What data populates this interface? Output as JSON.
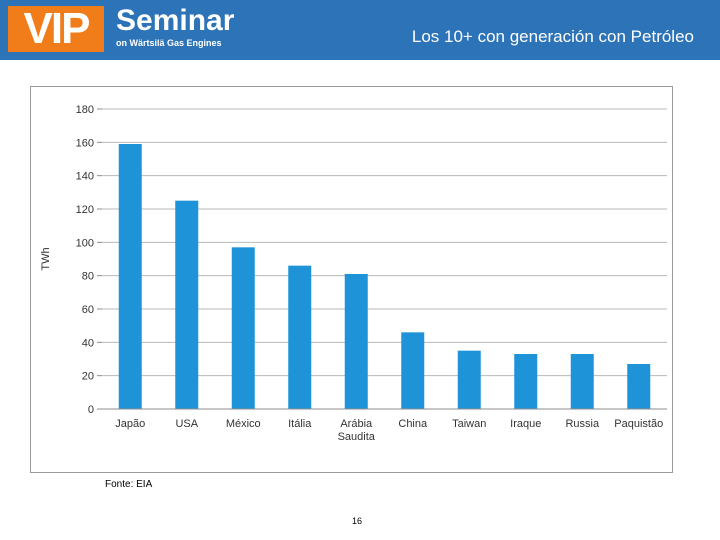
{
  "header": {
    "logo_vip": "VIP",
    "logo_seminar": "Seminar",
    "logo_sub": "on Wärtsilä Gas Engines",
    "title": "Los 10+ con generación con Petróleo"
  },
  "colors": {
    "header_bg": "#2c73b8",
    "logo_orange": "#f07d1a",
    "bar": "#1f93d8"
  },
  "chart_data": {
    "type": "bar",
    "categories": [
      "Japão",
      "USA",
      "México",
      "Itália",
      "Arábia Saudita",
      "China",
      "Taiwan",
      "Iraque",
      "Russia",
      "Paquistão"
    ],
    "category_lines": [
      [
        "Japão"
      ],
      [
        "USA"
      ],
      [
        "México"
      ],
      [
        "Itália"
      ],
      [
        "Arábia",
        "Saudita"
      ],
      [
        "China"
      ],
      [
        "Taiwan"
      ],
      [
        "Iraque"
      ],
      [
        "Russia"
      ],
      [
        "Paquistão"
      ]
    ],
    "values": [
      159,
      125,
      97,
      86,
      81,
      46,
      35,
      33,
      33,
      27
    ],
    "ylabel": "TWh",
    "ylim": [
      0,
      180
    ],
    "yticks": [
      0,
      20,
      40,
      60,
      80,
      100,
      120,
      140,
      160,
      180
    ],
    "grid": true
  },
  "footer": {
    "source": "Fonte: EIA",
    "page": "16"
  }
}
